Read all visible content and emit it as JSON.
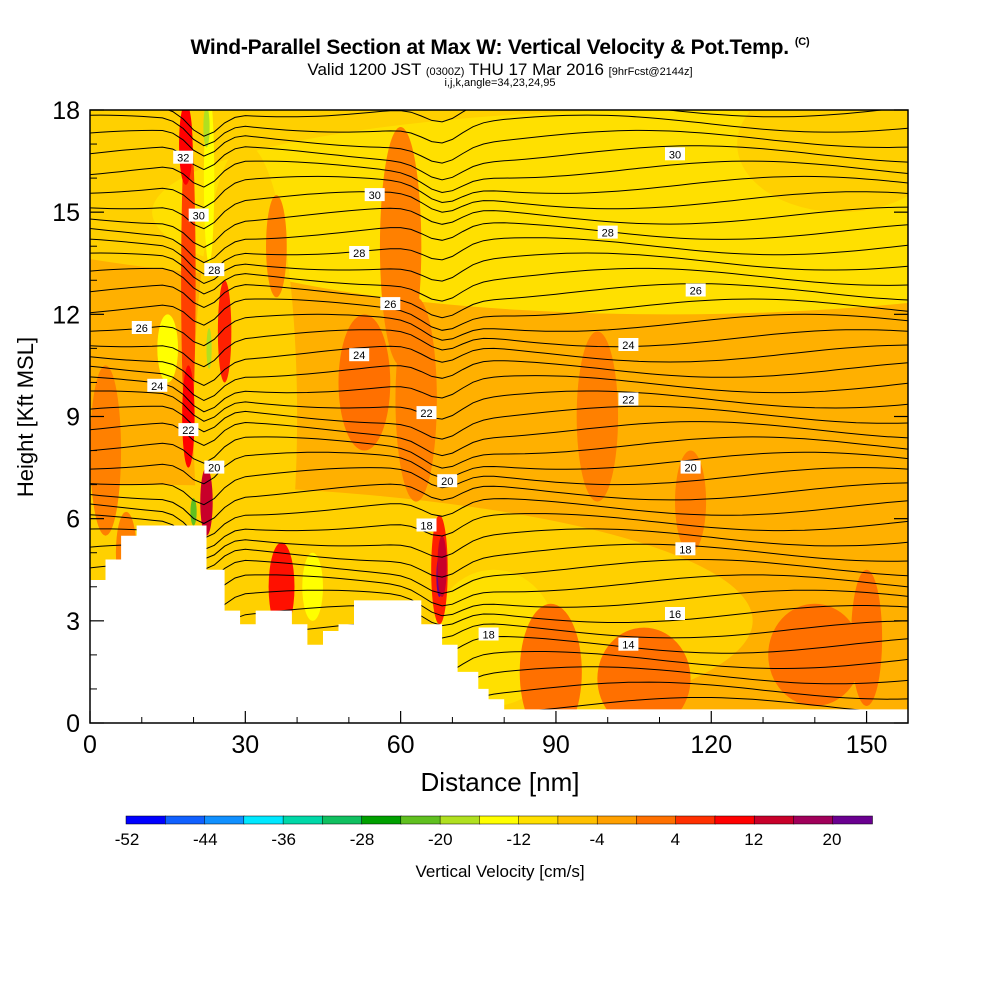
{
  "header": {
    "title": "Wind-Parallel Section at Max W: Vertical Velocity & Pot.Temp.",
    "copyright": "(C)",
    "valid_prefix": "Valid 1200 JST",
    "valid_utc": "(0300Z)",
    "valid_date": "THU 17 Mar 2016",
    "forecast": "[9hrFcst@2144z]",
    "params": "i,j,k,angle=34,23,24,95"
  },
  "colorbar": {
    "title": "Vertical Velocity [cm/s]",
    "tick_labels": [
      "-52",
      "-44",
      "-36",
      "-28",
      "-20",
      "-12",
      "-4",
      "4",
      "12",
      "20"
    ],
    "colors": [
      "#0000ff",
      "#1060ff",
      "#1090ff",
      "#00e8ff",
      "#00d8a8",
      "#10c060",
      "#00a000",
      "#60c020",
      "#b0e020",
      "#ffff00",
      "#ffe000",
      "#ffc000",
      "#ffa000",
      "#ff7000",
      "#ff3000",
      "#ff0000",
      "#c8002a",
      "#a0005a",
      "#6a0090"
    ]
  },
  "chart_data": {
    "type": "heatmap",
    "title": "Wind-Parallel Section at Max W: Vertical Velocity & Pot.Temp.",
    "xlabel": "Distance [nm]",
    "ylabel": "Height [Kft MSL]",
    "xlim": [
      0,
      158
    ],
    "ylim": [
      0,
      18
    ],
    "xticks": [
      0,
      30,
      60,
      90,
      120,
      150
    ],
    "yticks": [
      0,
      3,
      6,
      9,
      12,
      15,
      18
    ],
    "filled_field": "Vertical Velocity [cm/s]",
    "contour_field": "Potential temperature",
    "contour_labels": [
      {
        "text": "32",
        "x": 18,
        "y": 16.6
      },
      {
        "text": "30",
        "x": 21,
        "y": 14.9
      },
      {
        "text": "30",
        "x": 55,
        "y": 15.5
      },
      {
        "text": "30",
        "x": 113,
        "y": 16.7
      },
      {
        "text": "28",
        "x": 24,
        "y": 13.3
      },
      {
        "text": "28",
        "x": 52,
        "y": 13.8
      },
      {
        "text": "28",
        "x": 100,
        "y": 14.4
      },
      {
        "text": "26",
        "x": 10,
        "y": 11.6
      },
      {
        "text": "26",
        "x": 58,
        "y": 12.3
      },
      {
        "text": "26",
        "x": 117,
        "y": 12.7
      },
      {
        "text": "24",
        "x": 13,
        "y": 9.9
      },
      {
        "text": "24",
        "x": 52,
        "y": 10.8
      },
      {
        "text": "24",
        "x": 104,
        "y": 11.1
      },
      {
        "text": "22",
        "x": 19,
        "y": 8.6
      },
      {
        "text": "22",
        "x": 65,
        "y": 9.1
      },
      {
        "text": "22",
        "x": 104,
        "y": 9.5
      },
      {
        "text": "20",
        "x": 24,
        "y": 7.5
      },
      {
        "text": "20",
        "x": 69,
        "y": 7.1
      },
      {
        "text": "20",
        "x": 116,
        "y": 7.5
      },
      {
        "text": "18",
        "x": 65,
        "y": 5.8
      },
      {
        "text": "18",
        "x": 115,
        "y": 5.1
      },
      {
        "text": "18",
        "x": 77,
        "y": 2.6
      },
      {
        "text": "16",
        "x": 113,
        "y": 3.2
      },
      {
        "text": "14",
        "x": 104,
        "y": 2.3
      }
    ],
    "terrain": [
      [
        0,
        4.2
      ],
      [
        3,
        4.2
      ],
      [
        3,
        4.8
      ],
      [
        6,
        4.8
      ],
      [
        6,
        5.5
      ],
      [
        9,
        5.5
      ],
      [
        9,
        5.8
      ],
      [
        22.5,
        5.8
      ],
      [
        22.5,
        4.5
      ],
      [
        26,
        4.5
      ],
      [
        26,
        3.3
      ],
      [
        29,
        3.3
      ],
      [
        29,
        2.9
      ],
      [
        32,
        2.9
      ],
      [
        32,
        3.3
      ],
      [
        39,
        3.3
      ],
      [
        39,
        2.9
      ],
      [
        42,
        2.9
      ],
      [
        42,
        2.3
      ],
      [
        45,
        2.3
      ],
      [
        45,
        2.7
      ],
      [
        48,
        2.7
      ],
      [
        48,
        2.9
      ],
      [
        51,
        2.9
      ],
      [
        51,
        3.6
      ],
      [
        64,
        3.6
      ],
      [
        64,
        2.9
      ],
      [
        68,
        2.9
      ],
      [
        68,
        2.3
      ],
      [
        71,
        2.3
      ],
      [
        71,
        1.5
      ],
      [
        75,
        1.5
      ],
      [
        75,
        1.0
      ],
      [
        77,
        1.0
      ],
      [
        77,
        0.7
      ],
      [
        80,
        0.7
      ],
      [
        80,
        0.4
      ],
      [
        158,
        0.4
      ]
    ]
  }
}
